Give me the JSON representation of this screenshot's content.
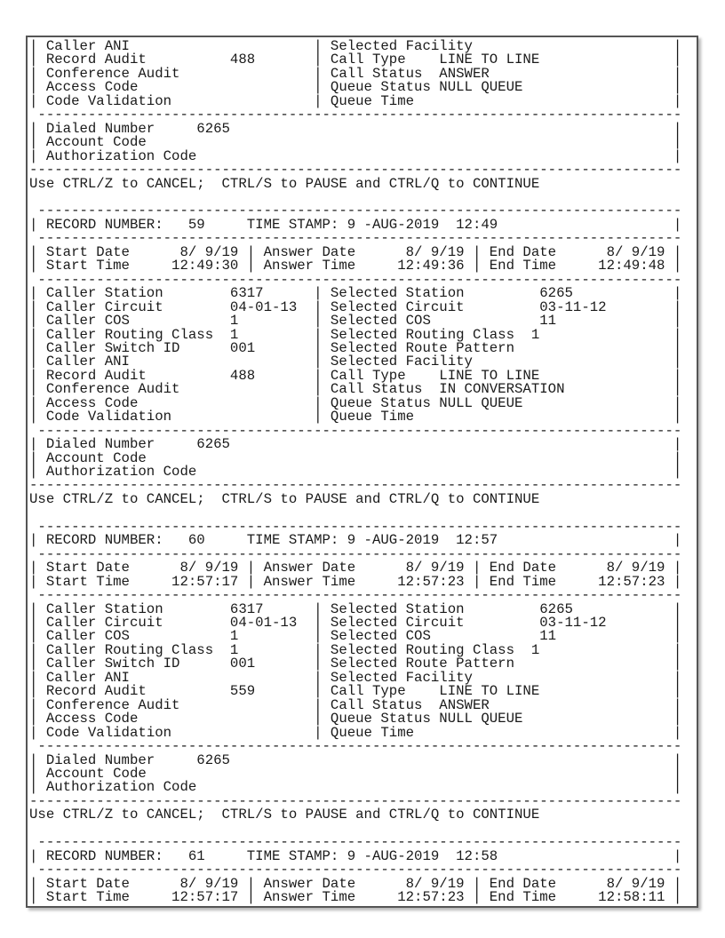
{
  "colors": {
    "background": "#ffffff",
    "page_background": "#ffffff",
    "page_border": "#555555",
    "text": "#1a1a1a"
  },
  "prompt_line": "Use CTRL/Z to CANCEL;  CTRL/S to PAUSE and CTRL/Q to CONTINUE",
  "labels": {
    "record_number": "RECORD NUMBER:",
    "time_stamp": "TIME STAMP:",
    "start_date": "Start Date",
    "answer_date": "Answer Date",
    "end_date": "End Date",
    "start_time": "Start Time",
    "answer_time": "Answer Time",
    "end_time": "End Time",
    "caller": [
      "Caller Station",
      "Caller Circuit",
      "Caller COS",
      "Caller Routing Class",
      "Caller Switch ID",
      "Caller ANI",
      "Record Audit",
      "Conference Audit",
      "Access Code",
      "Code Validation"
    ],
    "selected": [
      "Selected Station",
      "Selected Circuit",
      "Selected COS",
      "Selected Routing Class",
      "Selected Route Pattern",
      "Selected Facility",
      "Call Type",
      "Call Status",
      "Queue Status",
      "Queue Time"
    ],
    "dialed_number": "Dialed Number",
    "account_code": "Account Code",
    "authorization_code": "Authorization Code"
  },
  "records": [
    {
      "clip": "tail",
      "caller_tail_values": [
        "",
        "488",
        "",
        "",
        ""
      ],
      "selected_tail_values": [
        "",
        "LINE TO LINE",
        "ANSWER",
        "NULL QUEUE",
        ""
      ],
      "dialed_number": "6265",
      "account_code": "",
      "authorization_code": ""
    },
    {
      "clip": "full",
      "record_number": "59",
      "time_stamp": "9 -AUG-2019  12:49",
      "dates": {
        "start_date": "8/ 9/19",
        "answer_date": "8/ 9/19",
        "end_date": "8/ 9/19",
        "start_time": "12:49:30",
        "answer_time": "12:49:36",
        "end_time": "12:49:48"
      },
      "caller_values": [
        "6317",
        "04-01-13",
        "1",
        "1",
        "001",
        "",
        "488",
        "",
        "",
        ""
      ],
      "selected_values": [
        "6265",
        "03-11-12",
        "11",
        "1",
        "",
        "",
        "LINE TO LINE",
        "IN CONVERSATION",
        "NULL QUEUE",
        ""
      ],
      "dialed_number": "6265",
      "account_code": "",
      "authorization_code": ""
    },
    {
      "clip": "full",
      "record_number": "60",
      "time_stamp": "9 -AUG-2019  12:57",
      "dates": {
        "start_date": "8/ 9/19",
        "answer_date": "8/ 9/19",
        "end_date": "8/ 9/19",
        "start_time": "12:57:17",
        "answer_time": "12:57:23",
        "end_time": "12:57:23"
      },
      "caller_values": [
        "6317",
        "04-01-13",
        "1",
        "1",
        "001",
        "",
        "559",
        "",
        "",
        ""
      ],
      "selected_values": [
        "6265",
        "03-11-12",
        "11",
        "1",
        "",
        "",
        "LINE TO LINE",
        "ANSWER",
        "NULL QUEUE",
        ""
      ],
      "dialed_number": "6265",
      "account_code": "",
      "authorization_code": ""
    },
    {
      "clip": "head",
      "record_number": "61",
      "time_stamp": "9 -AUG-2019  12:58",
      "dates": {
        "start_date": "8/ 9/19",
        "answer_date": "8/ 9/19",
        "end_date": "8/ 9/19",
        "start_time": "12:57:17",
        "answer_time": "12:57:23",
        "end_time": "12:58:11"
      }
    }
  ]
}
